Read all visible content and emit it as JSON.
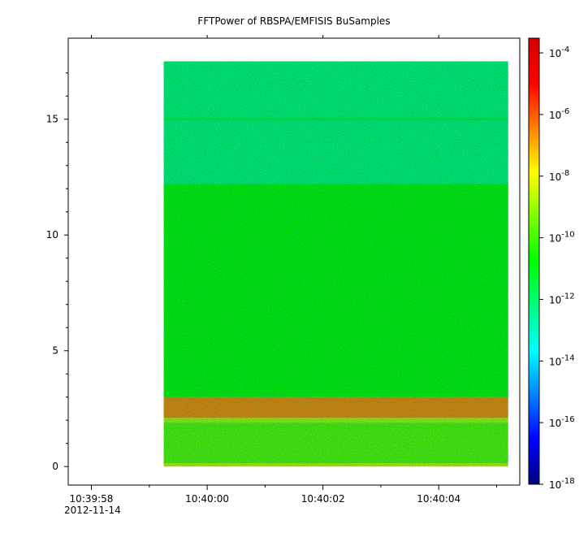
{
  "chart_data": {
    "type": "heatmap",
    "title": "FFTPower of RBSPA/EMFISIS  BuSamples",
    "date_label": "2012-11-14",
    "x_axis": {
      "range": [
        "10:39:57.6",
        "10:40:05.4"
      ],
      "range_seconds": [
        -2.4,
        5.4
      ],
      "ticks": [
        {
          "t": -2,
          "label": "10:39:58"
        },
        {
          "t": 0,
          "label": "10:40:00"
        },
        {
          "t": 2,
          "label": "10:40:02"
        },
        {
          "t": 4,
          "label": "10:40:04"
        }
      ],
      "minor_ticks": [
        -1,
        1,
        3,
        5
      ]
    },
    "y_axis": {
      "range": [
        -0.8,
        18.5
      ],
      "ticks": [
        {
          "v": 0,
          "label": "0"
        },
        {
          "v": 5,
          "label": "5"
        },
        {
          "v": 10,
          "label": "10"
        },
        {
          "v": 15,
          "label": "15"
        }
      ]
    },
    "data_extent": {
      "t_start": -0.75,
      "t_end": 5.2,
      "y_start": 0,
      "y_end": 17.5
    },
    "colorbar": {
      "scale": "log",
      "range": [
        1e-18,
        0.0003
      ],
      "ticks": [
        {
          "base": "10",
          "exp": "-4"
        },
        {
          "base": "10",
          "exp": "-6"
        },
        {
          "base": "10",
          "exp": "-8"
        },
        {
          "base": "10",
          "exp": "-10"
        },
        {
          "base": "10",
          "exp": "-12"
        },
        {
          "base": "10",
          "exp": "-14"
        },
        {
          "base": "10",
          "exp": "-16"
        },
        {
          "base": "10",
          "exp": "-18"
        }
      ],
      "tick_exponents": [
        -4,
        -6,
        -8,
        -10,
        -12,
        -14,
        -16,
        -18
      ],
      "colormap": [
        "#00007f",
        "#0000ff",
        "#0080ff",
        "#00ffff",
        "#00ff80",
        "#00ff00",
        "#80ff00",
        "#ffff00",
        "#ff8000",
        "#ff0000",
        "#d00000"
      ]
    },
    "features": [
      {
        "y": [
          0.0,
          0.15
        ],
        "log_power": -8.5
      },
      {
        "y": [
          0.15,
          1.9
        ],
        "log_power": -9.8
      },
      {
        "y": [
          1.9,
          2.1
        ],
        "log_power": -8.8
      },
      {
        "y": [
          2.1,
          3.0
        ],
        "log_power": -6.5
      },
      {
        "y": [
          3.0,
          12.2
        ],
        "log_power": -10.8
      },
      {
        "y": [
          12.2,
          17.5
        ],
        "log_power": -12.2
      },
      {
        "y": [
          14.95,
          15.05
        ],
        "log_power": -11.2
      }
    ]
  }
}
